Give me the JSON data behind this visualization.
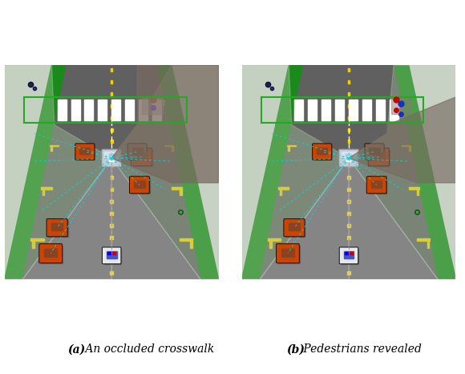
{
  "fig_width": 5.8,
  "fig_height": 4.66,
  "dpi": 100,
  "background_color": "#ffffff",
  "caption_a_bold": "(a)",
  "caption_a_rest": " An occluded crosswalk",
  "caption_b_bold": "(b)",
  "caption_b_rest": " Pedestrians revealed",
  "caption_fontsize": 10.0,
  "road_dark": "#606060",
  "sidewalk_light": "#d8d8d8",
  "grass_green": "#1a8a1a",
  "lane_yellow": "#f0d000",
  "white": "#ffffff",
  "cyan": "#00e8e8",
  "ego_body": "#c0ccd8",
  "ego_glass": "#dce8f0",
  "orange_car": "#cc4400",
  "purple_car": "#5544aa",
  "blue_police": "#3344cc",
  "brown_car": "#886644",
  "dark_occlusion": "#7a6e68",
  "vis_green": "#90c890",
  "vis_gray": "#b8b8b8"
}
